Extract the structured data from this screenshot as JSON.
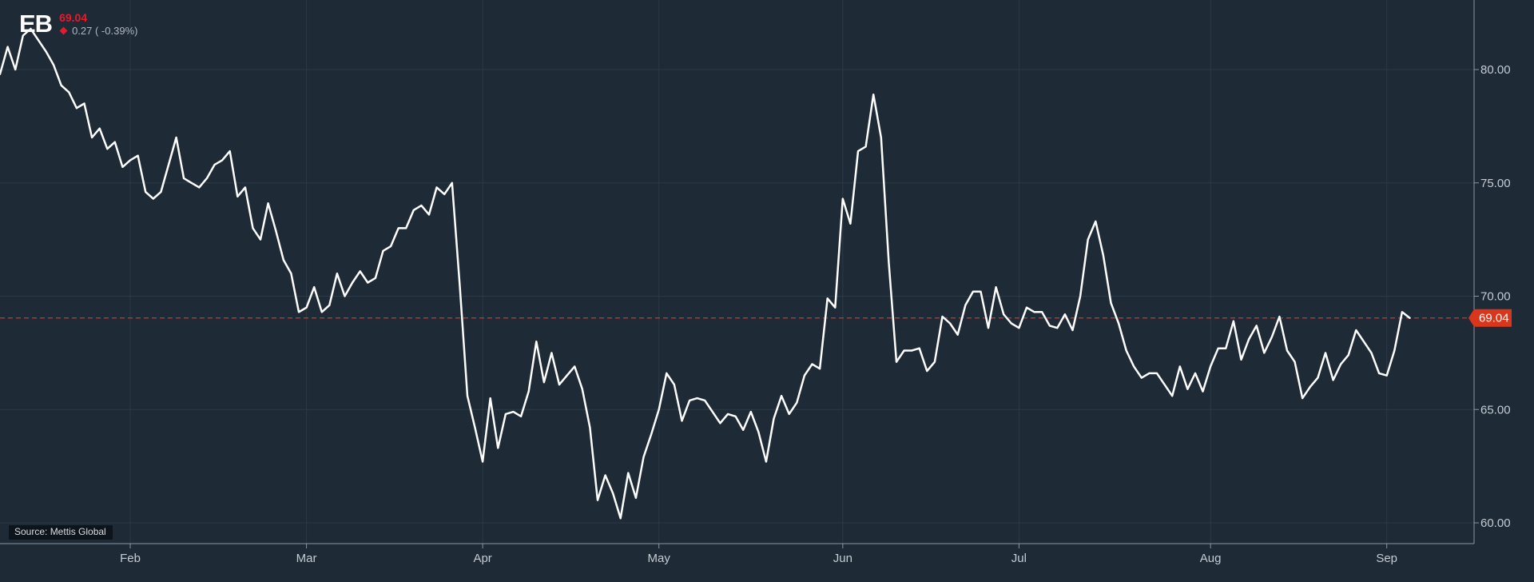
{
  "header": {
    "symbol": "EB",
    "last_price": "69.04",
    "change": "0.27 ( -0.39%)"
  },
  "source": "Source: Mettis Global",
  "colors": {
    "background": "#1e2a36",
    "line": "#ffffff",
    "price_marker": "#d9361b",
    "negative": "#e8192c"
  },
  "chart_data": {
    "type": "line",
    "title": "",
    "xlabel": "",
    "ylabel": "",
    "ylim": [
      59,
      82
    ],
    "yticks": [
      "60.00",
      "65.00",
      "70.00",
      "75.00",
      "80.00"
    ],
    "xticks": [
      {
        "label": "Feb",
        "index": 17
      },
      {
        "label": "Mar",
        "index": 40
      },
      {
        "label": "Apr",
        "index": 63
      },
      {
        "label": "May",
        "index": 86
      },
      {
        "label": "Jun",
        "index": 110
      },
      {
        "label": "Jul",
        "index": 133
      },
      {
        "label": "Aug",
        "index": 158
      },
      {
        "label": "Sep",
        "index": 181
      }
    ],
    "last_value": 69.04,
    "last_value_label": "69.04",
    "grid": true,
    "series": [
      {
        "values": [
          79.8,
          81.0,
          80.0,
          81.5,
          81.8,
          81.3,
          80.8,
          80.2,
          79.3,
          79.0,
          78.3,
          78.5,
          77.0,
          77.4,
          76.5,
          76.8,
          75.7,
          76.0,
          76.2,
          74.6,
          74.3,
          74.6,
          75.8,
          77.0,
          75.2,
          75.0,
          74.8,
          75.2,
          75.8,
          76.0,
          76.4,
          74.4,
          74.8,
          73.0,
          72.5,
          74.1,
          72.9,
          71.6,
          71.0,
          69.3,
          69.5,
          70.4,
          69.3,
          69.6,
          71.0,
          70.0,
          70.6,
          71.1,
          70.6,
          70.8,
          72.0,
          72.2,
          73.0,
          73.0,
          73.8,
          74.0,
          73.6,
          74.8,
          74.5,
          75.0,
          70.5,
          65.6,
          64.2,
          62.7,
          65.5,
          63.3,
          64.8,
          64.9,
          64.7,
          65.8,
          68.0,
          66.2,
          67.5,
          66.1,
          66.5,
          66.9,
          65.9,
          64.2,
          61.0,
          62.1,
          61.3,
          60.2,
          62.2,
          61.1,
          62.9,
          63.9,
          65.0,
          66.6,
          66.1,
          64.5,
          65.4,
          65.5,
          65.4,
          64.9,
          64.4,
          64.8,
          64.7,
          64.1,
          64.9,
          64.0,
          62.7,
          64.6,
          65.6,
          64.8,
          65.3,
          66.5,
          67.0,
          66.8,
          69.9,
          69.5,
          74.3,
          73.2,
          76.4,
          76.6,
          78.9,
          77.0,
          71.5,
          67.1,
          67.6,
          67.6,
          67.7,
          66.7,
          67.1,
          69.1,
          68.8,
          68.3,
          69.6,
          70.2,
          70.2,
          68.6,
          70.4,
          69.2,
          68.8,
          68.6,
          69.5,
          69.3,
          69.3,
          68.7,
          68.6,
          69.2,
          68.5,
          70.0,
          72.5,
          73.3,
          71.8,
          69.7,
          68.8,
          67.6,
          66.9,
          66.4,
          66.6,
          66.6,
          66.1,
          65.6,
          66.9,
          65.9,
          66.6,
          65.8,
          66.9,
          67.7,
          67.7,
          68.9,
          67.2,
          68.1,
          68.7,
          67.5,
          68.2,
          69.1,
          67.6,
          67.1,
          65.5,
          66.0,
          66.4,
          67.5,
          66.3,
          67.0,
          67.4,
          68.5,
          68.0,
          67.5,
          66.6,
          66.5,
          67.6,
          69.3,
          69.04
        ]
      }
    ]
  }
}
